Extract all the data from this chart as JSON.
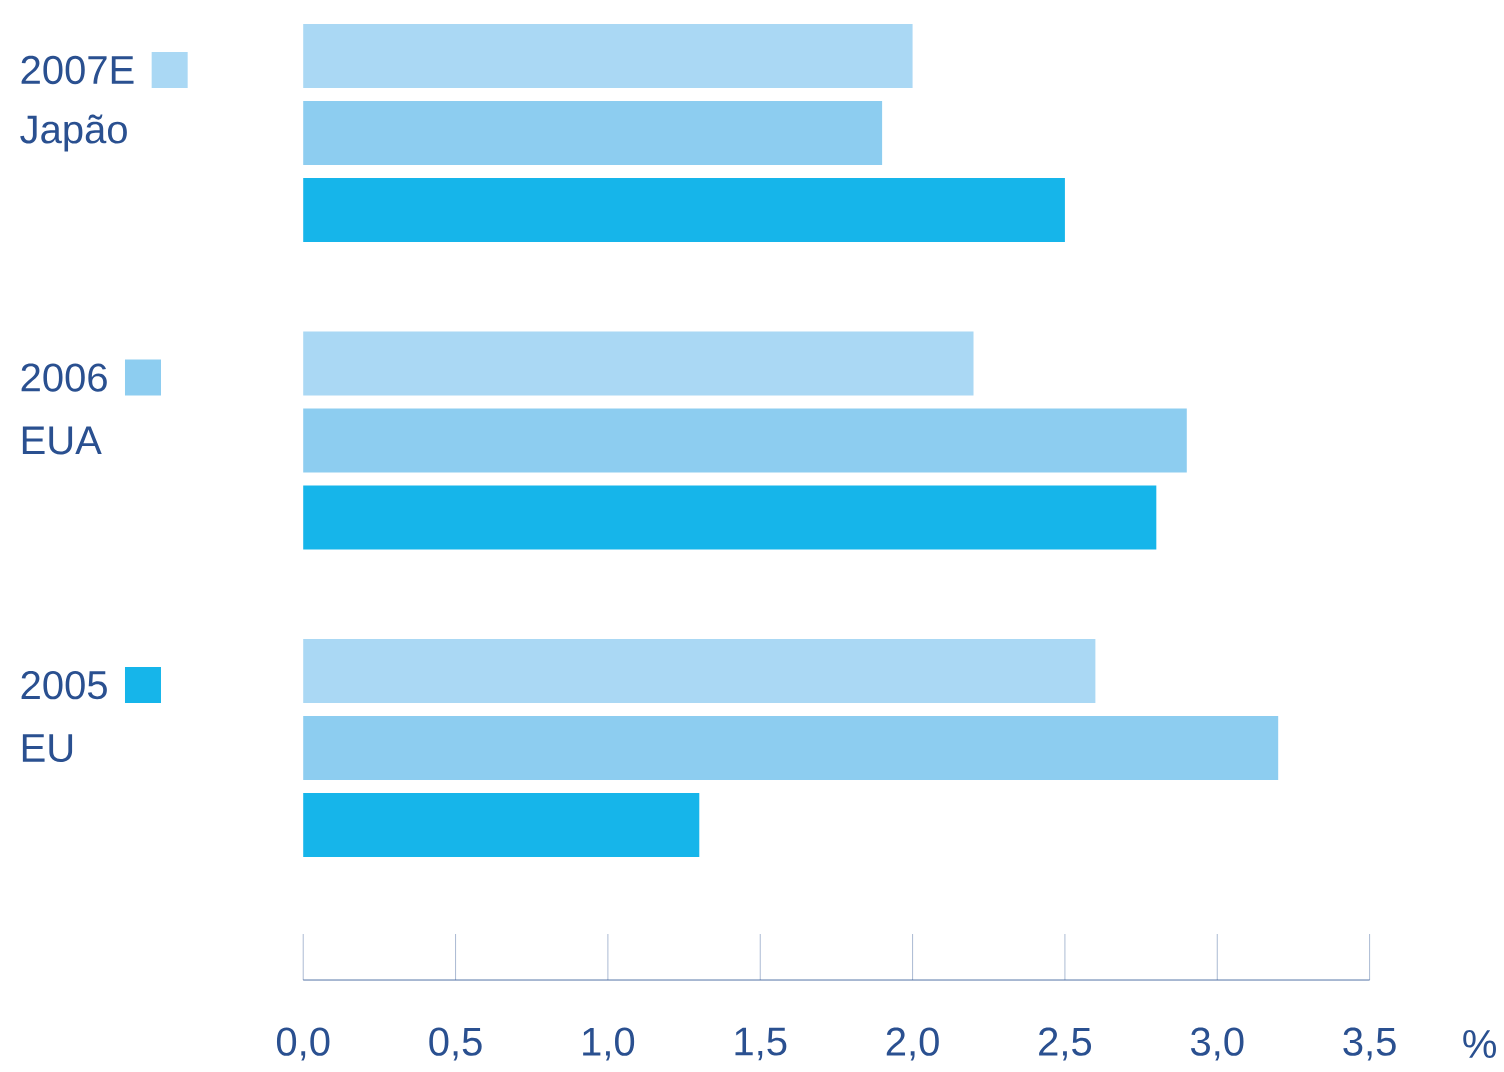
{
  "chart_data": {
    "type": "bar",
    "orientation": "horizontal",
    "xlabel": "%",
    "categories": [
      "Japão",
      "EUA",
      "EU"
    ],
    "series": [
      {
        "name": "2007E",
        "color": "#aad8f4",
        "values": [
          2.0,
          2.2,
          2.6
        ]
      },
      {
        "name": "2006",
        "color": "#8dcdf0",
        "values": [
          1.9,
          2.9,
          3.2
        ]
      },
      {
        "name": "2005",
        "color": "#16b5ea",
        "values": [
          2.5,
          2.8,
          1.3
        ]
      }
    ],
    "xlim": [
      0,
      3.5
    ],
    "xticks": [
      {
        "value": 0,
        "label": "0,0"
      },
      {
        "value": 0.5,
        "label": "0,5"
      },
      {
        "value": 1,
        "label": "1,0"
      },
      {
        "value": 1.5,
        "label": "1,5"
      },
      {
        "value": 2,
        "label": "2,0"
      },
      {
        "value": 2.5,
        "label": "2,5"
      },
      {
        "value": 3,
        "label": "3,0"
      },
      {
        "value": 3.5,
        "label": "3,5"
      }
    ],
    "grid": false,
    "legend": "left"
  }
}
